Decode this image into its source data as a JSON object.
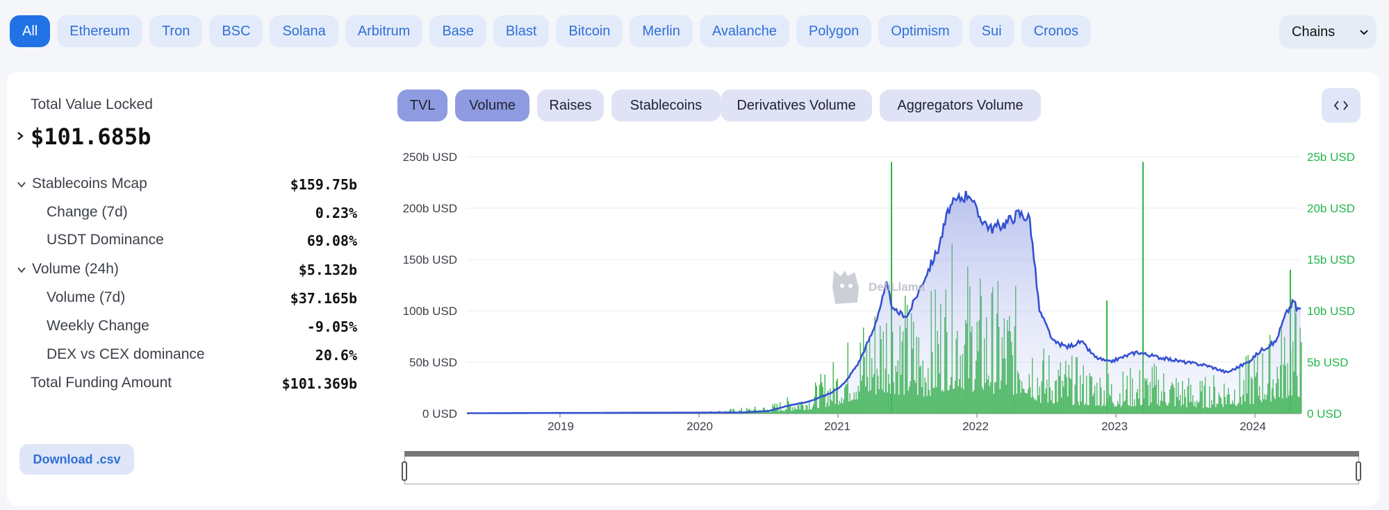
{
  "chains": {
    "items": [
      "All",
      "Ethereum",
      "Tron",
      "BSC",
      "Solana",
      "Arbitrum",
      "Base",
      "Blast",
      "Bitcoin",
      "Merlin",
      "Avalanche",
      "Polygon",
      "Optimism",
      "Sui",
      "Cronos"
    ],
    "active": "All",
    "dropdown_label": "Chains"
  },
  "summary": {
    "tvl_label": "Total Value Locked",
    "tvl_value": "$101.685b",
    "rows": [
      {
        "label": "Stablecoins Mcap",
        "value": "$159.75b"
      },
      {
        "label": "Change (7d)",
        "value": "0.23%"
      },
      {
        "label": "USDT Dominance",
        "value": "69.08%"
      },
      {
        "label": "Volume (24h)",
        "value": "$5.132b"
      },
      {
        "label": "Volume (7d)",
        "value": "$37.165b"
      },
      {
        "label": "Weekly Change",
        "value": "-9.05%"
      },
      {
        "label": "DEX vs CEX dominance",
        "value": "20.6%"
      },
      {
        "label": "Total Funding Amount",
        "value": "$101.369b"
      }
    ],
    "download_label": "Download .csv"
  },
  "tabs": {
    "items": [
      "TVL",
      "Volume",
      "Raises",
      "Stablecoins",
      "Derivatives Volume",
      "Aggregators Volume"
    ],
    "active": [
      "TVL",
      "Volume"
    ]
  },
  "icons": {
    "dropdown": "chevron-down-icon",
    "embed": "code-brackets-icon",
    "expand_tvl": "chevron-right-icon",
    "collapse": "chevron-down-icon"
  },
  "colors": {
    "accent": "#2172e5",
    "tvl_line": "#3451d1",
    "volume_bars": "#39b54a",
    "right_axis": "#22b54a"
  },
  "chart_data": {
    "type": "line",
    "watermark": "DefiLlama",
    "x_ticks": [
      "2019",
      "2020",
      "2021",
      "2022",
      "2023",
      "2024"
    ],
    "y_left": {
      "ticks": [
        "0 USD",
        "50b USD",
        "100b USD",
        "150b USD",
        "200b USD",
        "250b USD"
      ],
      "range": [
        0,
        250
      ],
      "unit": "b USD"
    },
    "y_right": {
      "ticks": [
        "0 USD",
        "5b USD",
        "10b USD",
        "15b USD",
        "20b USD",
        "25b USD"
      ],
      "range": [
        0,
        25
      ],
      "unit": "b USD"
    },
    "series": [
      {
        "axis": "left",
        "kind": "area-line",
        "points": [
          [
            2018.33,
            0.3
          ],
          [
            2019.0,
            0.6
          ],
          [
            2019.5,
            0.8
          ],
          [
            2020.0,
            0.9
          ],
          [
            2020.3,
            1.0
          ],
          [
            2020.5,
            2.5
          ],
          [
            2020.65,
            8
          ],
          [
            2020.8,
            12
          ],
          [
            2020.95,
            20
          ],
          [
            2021.05,
            30
          ],
          [
            2021.15,
            50
          ],
          [
            2021.25,
            80
          ],
          [
            2021.35,
            125
          ],
          [
            2021.4,
            100
          ],
          [
            2021.5,
            95
          ],
          [
            2021.55,
            110
          ],
          [
            2021.65,
            140
          ],
          [
            2021.72,
            160
          ],
          [
            2021.8,
            200
          ],
          [
            2021.88,
            210
          ],
          [
            2021.95,
            215
          ],
          [
            2022.0,
            195
          ],
          [
            2022.1,
            180
          ],
          [
            2022.2,
            185
          ],
          [
            2022.3,
            195
          ],
          [
            2022.38,
            190
          ],
          [
            2022.45,
            100
          ],
          [
            2022.55,
            70
          ],
          [
            2022.65,
            65
          ],
          [
            2022.75,
            70
          ],
          [
            2022.85,
            55
          ],
          [
            2022.95,
            50
          ],
          [
            2023.05,
            55
          ],
          [
            2023.15,
            60
          ],
          [
            2023.3,
            55
          ],
          [
            2023.5,
            50
          ],
          [
            2023.65,
            47
          ],
          [
            2023.8,
            40
          ],
          [
            2023.95,
            50
          ],
          [
            2024.05,
            62
          ],
          [
            2024.15,
            70
          ],
          [
            2024.22,
            96
          ],
          [
            2024.28,
            110
          ],
          [
            2024.3,
            102
          ],
          [
            2024.33,
            102
          ]
        ]
      },
      {
        "axis": "right",
        "kind": "bars",
        "envelope": [
          [
            2018.33,
            0.05
          ],
          [
            2020.0,
            0.1
          ],
          [
            2020.5,
            0.5
          ],
          [
            2020.8,
            1.5
          ],
          [
            2021.0,
            3.5
          ],
          [
            2021.35,
            8
          ],
          [
            2021.6,
            6
          ],
          [
            2021.85,
            10
          ],
          [
            2022.0,
            8
          ],
          [
            2022.35,
            7
          ],
          [
            2022.45,
            4
          ],
          [
            2022.8,
            3
          ],
          [
            2023.0,
            2.5
          ],
          [
            2023.3,
            3
          ],
          [
            2023.6,
            2
          ],
          [
            2023.9,
            3
          ],
          [
            2024.15,
            5
          ],
          [
            2024.3,
            7
          ],
          [
            2024.33,
            5
          ]
        ],
        "spikes": [
          [
            2021.38,
            24.5
          ],
          [
            2022.93,
            11
          ],
          [
            2023.19,
            24.5
          ],
          [
            2024.25,
            14
          ]
        ]
      }
    ]
  }
}
